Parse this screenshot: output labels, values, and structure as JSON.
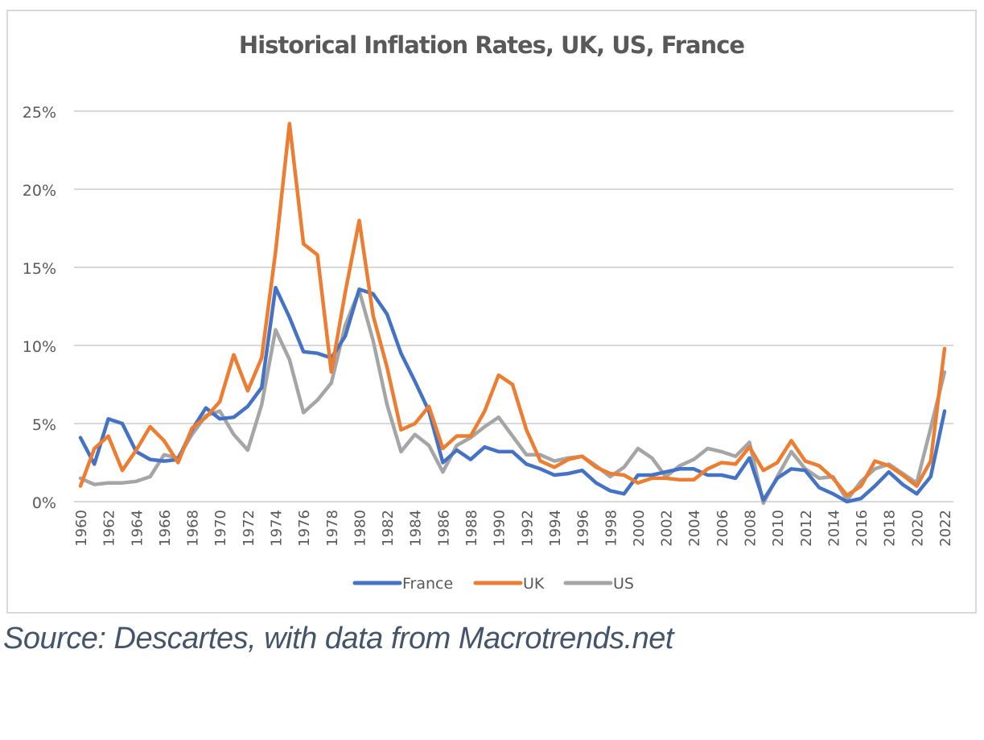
{
  "chart_data": {
    "type": "line",
    "title": "Historical Inflation Rates, UK, US, France",
    "xlabel": "",
    "ylabel": "",
    "ylim": [
      0,
      25
    ],
    "yticks": [
      "0%",
      "5%",
      "10%",
      "15%",
      "20%",
      "25%"
    ],
    "ytick_values": [
      0,
      5,
      10,
      15,
      20,
      25
    ],
    "grid": true,
    "legend_position": "bottom",
    "x": [
      1960,
      1961,
      1962,
      1963,
      1964,
      1965,
      1966,
      1967,
      1968,
      1969,
      1970,
      1971,
      1972,
      1973,
      1974,
      1975,
      1976,
      1977,
      1978,
      1979,
      1980,
      1981,
      1982,
      1983,
      1984,
      1985,
      1986,
      1987,
      1988,
      1989,
      1990,
      1991,
      1992,
      1993,
      1994,
      1995,
      1996,
      1997,
      1998,
      1999,
      2000,
      2001,
      2002,
      2003,
      2004,
      2005,
      2006,
      2007,
      2008,
      2009,
      2010,
      2011,
      2012,
      2013,
      2014,
      2015,
      2016,
      2017,
      2018,
      2019,
      2020,
      2021,
      2022
    ],
    "xtick_labels": [
      "1960",
      "1962",
      "1964",
      "1966",
      "1968",
      "1970",
      "1972",
      "1974",
      "1976",
      "1978",
      "1980",
      "1982",
      "1984",
      "1986",
      "1988",
      "1990",
      "1992",
      "1994",
      "1996",
      "1998",
      "2000",
      "2002",
      "2004",
      "2006",
      "2008",
      "2010",
      "2012",
      "2014",
      "2016",
      "2018",
      "2020",
      "2022"
    ],
    "series": [
      {
        "name": "France",
        "color": "#4472c4",
        "values": [
          4.1,
          2.4,
          5.3,
          5.0,
          3.2,
          2.7,
          2.6,
          2.7,
          4.6,
          6.0,
          5.3,
          5.4,
          6.1,
          7.3,
          13.7,
          11.8,
          9.6,
          9.5,
          9.2,
          10.6,
          13.6,
          13.3,
          12.0,
          9.5,
          7.7,
          5.8,
          2.5,
          3.3,
          2.7,
          3.5,
          3.2,
          3.2,
          2.4,
          2.1,
          1.7,
          1.8,
          2.0,
          1.2,
          0.7,
          0.5,
          1.7,
          1.7,
          1.9,
          2.1,
          2.1,
          1.7,
          1.7,
          1.5,
          2.8,
          0.1,
          1.5,
          2.1,
          2.0,
          0.9,
          0.5,
          0.0,
          0.2,
          1.0,
          1.9,
          1.1,
          0.5,
          1.6,
          5.8
        ]
      },
      {
        "name": "UK",
        "color": "#ed7d31",
        "values": [
          1.0,
          3.4,
          4.2,
          2.0,
          3.3,
          4.8,
          3.9,
          2.5,
          4.7,
          5.4,
          6.4,
          9.4,
          7.1,
          9.2,
          16.0,
          24.2,
          16.5,
          15.8,
          8.3,
          13.4,
          18.0,
          11.9,
          8.6,
          4.6,
          5.0,
          6.1,
          3.4,
          4.2,
          4.2,
          5.8,
          8.1,
          7.5,
          4.6,
          2.6,
          2.2,
          2.7,
          2.9,
          2.2,
          1.8,
          1.7,
          1.2,
          1.5,
          1.5,
          1.4,
          1.4,
          2.1,
          2.5,
          2.4,
          3.5,
          2.0,
          2.5,
          3.9,
          2.6,
          2.3,
          1.5,
          0.4,
          1.0,
          2.6,
          2.3,
          1.7,
          1.0,
          2.6,
          9.8
        ]
      },
      {
        "name": "US",
        "color": "#a5a5a5",
        "values": [
          1.5,
          1.1,
          1.2,
          1.2,
          1.3,
          1.6,
          3.0,
          2.8,
          4.3,
          5.5,
          5.8,
          4.3,
          3.3,
          6.2,
          11.0,
          9.1,
          5.7,
          6.5,
          7.6,
          11.3,
          13.5,
          10.3,
          6.2,
          3.2,
          4.3,
          3.6,
          1.9,
          3.6,
          4.1,
          4.8,
          5.4,
          4.2,
          3.0,
          3.0,
          2.6,
          2.8,
          2.9,
          2.3,
          1.6,
          2.2,
          3.4,
          2.8,
          1.6,
          2.3,
          2.7,
          3.4,
          3.2,
          2.9,
          3.8,
          -0.4,
          1.6,
          3.2,
          2.1,
          1.5,
          1.6,
          0.1,
          1.3,
          2.1,
          2.4,
          1.8,
          1.2,
          4.7,
          8.3
        ]
      }
    ]
  },
  "source": "Source: Descartes, with data from Macrotrends.net"
}
